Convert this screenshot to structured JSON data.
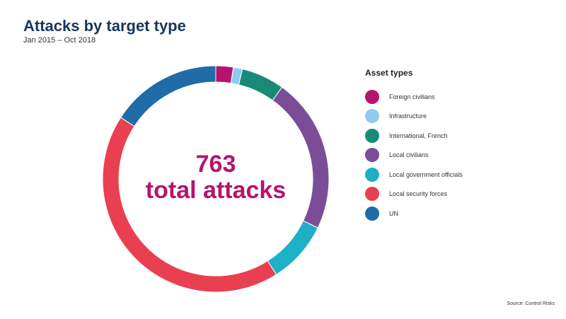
{
  "header": {
    "title": "Attacks by target type",
    "subtitle": "Jan 2015 – Oct 2018"
  },
  "center": {
    "value": "763",
    "label": "total attacks"
  },
  "legend": {
    "title": "Asset types"
  },
  "source": "Source: Control Risks",
  "chart_data": {
    "type": "pie",
    "title": "Attacks by target type",
    "total": 763,
    "series": [
      {
        "name": "Foreign civilians",
        "value": 19,
        "color": "#b5146d"
      },
      {
        "name": "Infrastructure",
        "value": 10,
        "color": "#8ecbee"
      },
      {
        "name": "International, French",
        "value": 47,
        "color": "#198a78"
      },
      {
        "name": "Local civilians",
        "value": 169,
        "color": "#7b4d98"
      },
      {
        "name": "Local government officials",
        "value": 68,
        "color": "#1db0c6"
      },
      {
        "name": "Local security forces",
        "value": 329,
        "color": "#e94051"
      },
      {
        "name": "UN",
        "value": 121,
        "color": "#1f6ca8"
      }
    ]
  }
}
